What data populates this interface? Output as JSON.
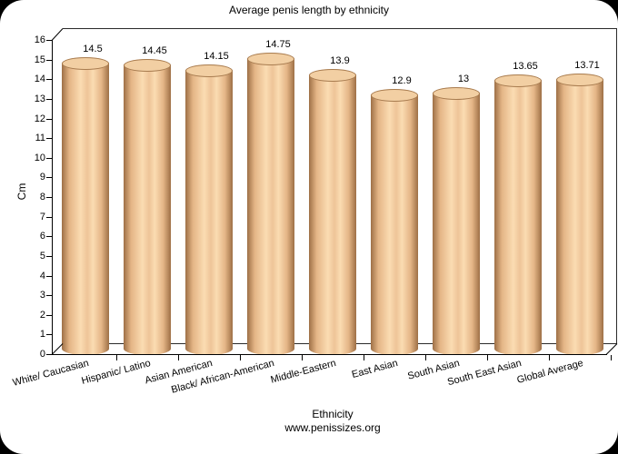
{
  "frame": {
    "outer_background": "#000000",
    "panel_background": "#ffffff",
    "axis_color": "#000000",
    "text_color": "#000000"
  },
  "chart_data": {
    "type": "bar",
    "bar_style": "3d-cylinder",
    "title": "Average penis length by ethnicity",
    "xlabel": "Ethnicity",
    "ylabel": "Cm",
    "source": "www.penissizes.org",
    "categories": [
      "White/ Caucasian",
      "Hispanic/ Latino",
      "Asian American",
      "Black/ African-American",
      "Middle-Eastern",
      "East Asian",
      "South Asian",
      "South East Asian",
      "Global Average"
    ],
    "values": [
      14.5,
      14.45,
      14.15,
      14.75,
      13.9,
      12.9,
      13,
      13.65,
      13.71
    ],
    "ylim": [
      0,
      16
    ],
    "yticks": [
      0,
      1,
      2,
      3,
      4,
      5,
      6,
      7,
      8,
      9,
      10,
      11,
      12,
      13,
      14,
      15,
      16
    ],
    "grid": false,
    "legend_position": "none",
    "category_label_rotation_deg": -15,
    "bar_colors": {
      "edge": "#9e7046",
      "mid": "#e4b586",
      "light": "#fbdcb2",
      "mid2": "#eec498",
      "top_face": "#f2cfa3",
      "top_edge": "#a87c50"
    }
  }
}
